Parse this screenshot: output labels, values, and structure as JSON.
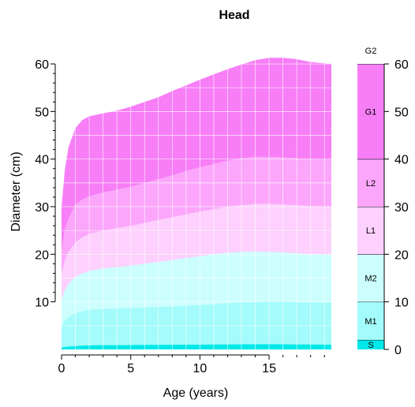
{
  "chart_data": {
    "type": "area",
    "title": "Head",
    "xlabel": "Age (years)",
    "ylabel": "Diameter (cm)",
    "xlim": [
      0,
      19.5
    ],
    "ylim": [
      0,
      61.5
    ],
    "x_ticks": [
      0,
      5,
      10,
      15
    ],
    "y_ticks": [
      10,
      20,
      30,
      40,
      50,
      60
    ],
    "x_tick_labels": [
      "0",
      "5",
      "10",
      "15"
    ],
    "y_tick_labels": [
      "10",
      "20",
      "30",
      "40",
      "50",
      "60"
    ],
    "grid": true,
    "zone_bar": {
      "ticks": [
        0,
        10,
        20,
        30,
        40,
        50,
        60
      ],
      "tick_labels": [
        "0",
        "10",
        "20",
        "30",
        "40",
        "50",
        "60"
      ],
      "zones": [
        {
          "label": "S",
          "from": 0,
          "to": 2,
          "color": "#00e8e8"
        },
        {
          "label": "M1",
          "from": 2,
          "to": 10,
          "color": "#a4fbfb"
        },
        {
          "label": "M2",
          "from": 10,
          "to": 20,
          "color": "#ccfefe"
        },
        {
          "label": "L1",
          "from": 20,
          "to": 30,
          "color": "#fdd0fd"
        },
        {
          "label": "L2",
          "from": 30,
          "to": 40,
          "color": "#fba6fb"
        },
        {
          "label": "G1",
          "from": 40,
          "to": 60,
          "color": "#f77ef7"
        },
        {
          "label": "G2",
          "from": 60,
          "to": 61.5,
          "color": "#ffffff"
        }
      ]
    },
    "x": [
      0,
      0.25,
      0.5,
      1,
      1.5,
      2,
      3,
      4,
      5,
      6,
      7,
      8,
      9,
      10,
      11,
      12,
      13,
      14,
      15,
      16,
      17,
      18,
      19.5
    ],
    "series": [
      {
        "color": "#00e8e8",
        "values": [
          0.4,
          0.5,
          0.6,
          0.7,
          0.8,
          0.85,
          0.9,
          0.9,
          0.92,
          0.94,
          0.96,
          0.98,
          1.0,
          1.0,
          1.02,
          1.05,
          1.07,
          1.08,
          1.1,
          1.08,
          1.05,
          1.02,
          1.0
        ]
      },
      {
        "color": "#a4fbfb",
        "values": [
          5.0,
          6.0,
          6.8,
          7.6,
          8.0,
          8.3,
          8.5,
          8.6,
          8.7,
          8.8,
          8.9,
          9.0,
          9.2,
          9.3,
          9.5,
          9.7,
          9.9,
          10.0,
          10.1,
          10.1,
          10.0,
          9.9,
          9.8
        ]
      },
      {
        "color": "#ccfefe",
        "values": [
          10.5,
          12.5,
          13.8,
          15.2,
          16.0,
          16.5,
          17.0,
          17.3,
          17.6,
          18.0,
          18.4,
          18.8,
          19.2,
          19.6,
          20.0,
          20.3,
          20.5,
          20.6,
          20.5,
          20.4,
          20.2,
          20.0,
          19.9
        ]
      },
      {
        "color": "#fdd0fd",
        "values": [
          16.0,
          19.0,
          20.5,
          22.5,
          23.6,
          24.3,
          25.0,
          25.5,
          26.0,
          26.6,
          27.2,
          27.8,
          28.4,
          29.0,
          29.5,
          30.0,
          30.3,
          30.6,
          30.6,
          30.5,
          30.3,
          30.1,
          30.0
        ]
      },
      {
        "color": "#fba6fb",
        "values": [
          21.0,
          25.5,
          27.5,
          30.5,
          31.5,
          32.2,
          33.0,
          33.6,
          34.2,
          35.0,
          35.8,
          36.6,
          37.5,
          38.3,
          39.0,
          39.7,
          40.2,
          40.5,
          40.5,
          40.4,
          40.2,
          40.0,
          39.9
        ]
      },
      {
        "color": "#f77ef7",
        "values": [
          30.0,
          38.0,
          42.5,
          46.5,
          48.2,
          49.0,
          49.6,
          50.2,
          51.0,
          52.0,
          53.0,
          54.3,
          55.5,
          56.7,
          57.8,
          58.9,
          59.9,
          60.8,
          61.3,
          61.3,
          61.0,
          60.4,
          60.0
        ]
      }
    ]
  }
}
